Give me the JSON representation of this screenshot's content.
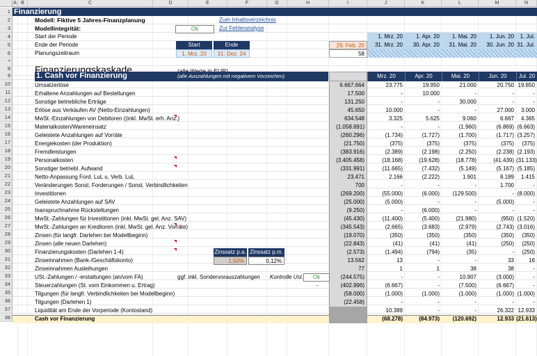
{
  "columns": [
    "A",
    "B",
    "C",
    "D",
    "E",
    "F",
    "G",
    "H",
    "I",
    "J",
    "K",
    "L",
    "M",
    "N"
  ],
  "title": "Finanzierung",
  "model_label": "Modell: Fiktive 5 Jahres-Finanzplanung",
  "integrity_label": "Modellintegrität:",
  "integrity_value": "Ok",
  "link_toc": "Zum Inhaltsverzeichnis",
  "link_errors": "Zur Fehleranalyse",
  "period_start_label": "Start der Periode",
  "period_end_label": "Ende der Periode",
  "planning_label": "Planungszeitraum",
  "start_hdr": "Start",
  "end_hdr": "Ende",
  "plan_start": "1. Mrz. 20",
  "plan_end": "31. Dez. 24",
  "prev_end": "29. Feb. 20",
  "planning_months": "58",
  "period_starts": [
    "1. Mrz. 20",
    "1. Apr. 20",
    "1. Mai. 20",
    "1. Jun. 20",
    "1. Jul. 20"
  ],
  "period_ends": [
    "31. Mrz. 20",
    "30. Apr. 20",
    "31. Mai. 20",
    "30. Jun. 20",
    "31. Jul. 20"
  ],
  "section_title": "Finanzierungskaskade",
  "section_note": "(alle Werte in EUR)",
  "sub_title": "1. Cash vor Finanzierung",
  "sub_note": "(alle Auszahlungen mit negativem Vorzeichen)",
  "month_headers": [
    "Mrz. 20",
    "Apr. 20",
    "Mai. 20",
    "Jun. 20",
    "Jul. 20"
  ],
  "rows": [
    {
      "n": "10",
      "label": "Umsatzerlöse",
      "total": "6.667.664",
      "v": [
        "23.775",
        "19.950",
        "21.000",
        "20.750",
        "19.850"
      ]
    },
    {
      "n": "11",
      "label": "Erhaltene Anzahlungen auf Bestellungen",
      "total": "17.500",
      "v": [
        "-",
        "10.000",
        "-",
        "-",
        "-"
      ]
    },
    {
      "n": "12",
      "label": "Sonstige betriebliche Erträge",
      "total": "131.250",
      "v": [
        "-",
        "-",
        "30.000",
        "-",
        "-"
      ]
    },
    {
      "n": "13",
      "label": "Erlöse aus Verkäufen AV (Netto-Einzahlungen)",
      "total": "45.650",
      "v": [
        "10.000",
        "-",
        "-",
        "27.000",
        "3.000"
      ]
    },
    {
      "n": "14",
      "label": "MwSt.-Einzahlungen von Debitoren ((inkl. MwSt. erh. Anz.)",
      "total": "634.548",
      "v": [
        "3.325",
        "5.625",
        "9.060",
        "6.667",
        "4.365"
      ]
    },
    {
      "n": "15",
      "label": "Materialkosten/Wareneinsatz",
      "total": "(1.058.691)",
      "v": [
        "-",
        "-",
        "(1.960)",
        "(6.869)",
        "(6.663)"
      ]
    },
    {
      "n": "16",
      "label": "Geleistete Anzahlungen auf Vorräte",
      "total": "(260.296)",
      "v": [
        "(1.734)",
        "(1.727)",
        "(1.700)",
        "(1.717)",
        "(3.257)"
      ]
    },
    {
      "n": "17",
      "label": "Energiekosten (der Produktion)",
      "total": "(21.750)",
      "v": [
        "(375)",
        "(375)",
        "(375)",
        "(375)",
        "(375)"
      ]
    },
    {
      "n": "18",
      "label": "Fremdleistungen",
      "total": "(383.916)",
      "v": [
        "(2.389)",
        "(2.198)",
        "(2.250)",
        "(2.238)",
        "(2.193)"
      ]
    },
    {
      "n": "19",
      "label": "Personalkosten",
      "total": "(3.405.458)",
      "v": [
        "(18.168)",
        "(19.628)",
        "(18.778)",
        "(41.439)",
        "(31.133)"
      ]
    },
    {
      "n": "20",
      "label": "Sonstiger betriebl. Aufwand",
      "total": "(331.991)",
      "v": [
        "(11.665)",
        "(7.432)",
        "(5.149)",
        "(5.167)",
        "(5.185)"
      ]
    },
    {
      "n": "21",
      "label": "Netto-Anpassung Ford. LuL u. Verb. LuL",
      "total": "23.471",
      "v": [
        "2.166",
        "(2.222)",
        "1.901",
        "8.189",
        "1.415"
      ]
    },
    {
      "n": "22",
      "label": "Veränderungen Sonst. Forderungen / Sonst. Verbindlichkeiten",
      "total": "700",
      "v": [
        "-",
        "-",
        "-",
        "1.700",
        "-"
      ]
    },
    {
      "n": "23",
      "label": "Investitionen",
      "total": "(269.200)",
      "v": [
        "(55.000)",
        "(6.000)",
        "(129.500)",
        "-",
        "(8.000)"
      ]
    },
    {
      "n": "24",
      "label": "Geleistete Anzahlungen auf SAV",
      "total": "(25.000)",
      "v": [
        "(5.000)",
        "-",
        "-",
        "(5.000)",
        "-"
      ]
    },
    {
      "n": "25",
      "label": "Inanspruchnahme Rückstellungen",
      "total": "(9.250)",
      "v": [
        "-",
        "(6.000)",
        "-",
        "-",
        "-"
      ]
    },
    {
      "n": "26",
      "label": "MwSt.-Zahlungen für Investitionen (inkl. MwSt. gel. Anz. SAV)",
      "total": "(45.430)",
      "v": [
        "(11.400)",
        "(5.400)",
        "(21.980)",
        "(950)",
        "(1.520)"
      ]
    },
    {
      "n": "27",
      "label": "MwSt.-Zahlungen an Kreditoren (inkl. MwSt. gel. Anz. Vorräte)",
      "total": "(345.543)",
      "v": [
        "(2.665)",
        "(3.683)",
        "(2.979)",
        "(2.743)",
        "(3.016)"
      ]
    },
    {
      "n": "28",
      "label": "Zinsen (für langfr. Darlehen bei Modellbeginn)",
      "total": "(19.070)",
      "v": [
        "(350)",
        "(350)",
        "(350)",
        "(350)",
        "(350)"
      ]
    },
    {
      "n": "29",
      "label": "Zinsen (alle neuen Darlehen)",
      "total": "(22.843)",
      "v": [
        "(41)",
        "(41)",
        "(41)",
        "(250)",
        "(250)"
      ]
    },
    {
      "n": "30",
      "label": "Finanzierungskosten (Darlehen 1-4)",
      "total": "(2.573)",
      "v": [
        "(1.494)",
        "(794)",
        "(35)",
        "-",
        "(250)"
      ]
    },
    {
      "n": "31",
      "label": "Zinseinnahmen (Bank-/Geschäftskonto)",
      "total": "13.562",
      "v": [
        "13",
        "-",
        "-",
        "33",
        "16"
      ]
    },
    {
      "n": "32",
      "label": "Zinseinnahmen Ausleihungen",
      "total": "77",
      "v": [
        "1",
        "1",
        "38",
        "38",
        "-"
      ]
    },
    {
      "n": "33",
      "label": "USt.-Zahlungen / -erstattungen (an/vom FA)",
      "total": "(244.575)",
      "v": [
        "-",
        "-",
        "10.907",
        "(3.000)",
        "-"
      ]
    },
    {
      "n": "34",
      "label": "Steuerzahlungen (St. vom Einkommen u. Ertrag)",
      "total": "(402.996)",
      "v": [
        "(6.667)",
        "-",
        "(7.500)",
        "(6.667)",
        "-"
      ]
    },
    {
      "n": "35",
      "label": "Tilgungen (für langfr. Verbindlichkeiten bei Modellbeginn)",
      "total": "(58.000)",
      "v": [
        "(1.000)",
        "(1.000)",
        "(1.000)",
        "(1.000)",
        "(1.000)"
      ]
    },
    {
      "n": "36",
      "label": "Tilgungen (Darlehen 1)",
      "total": "(22.458)",
      "v": [
        "-",
        "-",
        "-",
        "-",
        "-"
      ]
    },
    {
      "n": "37",
      "label": "Liquidität am Ende der Vorperiode (Kontostand)",
      "total": "",
      "v": [
        "10.389",
        "-",
        "-",
        "26.322",
        "12.933"
      ]
    },
    {
      "n": "38",
      "label": "Cash vor Finanzierung",
      "total": "",
      "v": [
        "(68.278)",
        "(84.973)",
        "(120.692)",
        "12.933",
        "(21.613)"
      ]
    }
  ],
  "zins_pa_hdr": "Zinssatz p.a.",
  "zins_pm_hdr": "Zinssatz p.m.",
  "zins_pa": "1,50%",
  "zins_pm": "0,12%",
  "sonder_note": "ggf. inkl. Sondervorauszahlungen",
  "sonder_dash": "-",
  "kontrolle_label": "Kontrolle Ust.",
  "kontrolle_value": "Ok",
  "colors": {
    "title_bg": "#1f3864",
    "light_blue": "#bdd7ee",
    "total_row": "#fff2cc",
    "grey_cell": "#d9d9d9",
    "ok_green": "#3a9a3a"
  }
}
